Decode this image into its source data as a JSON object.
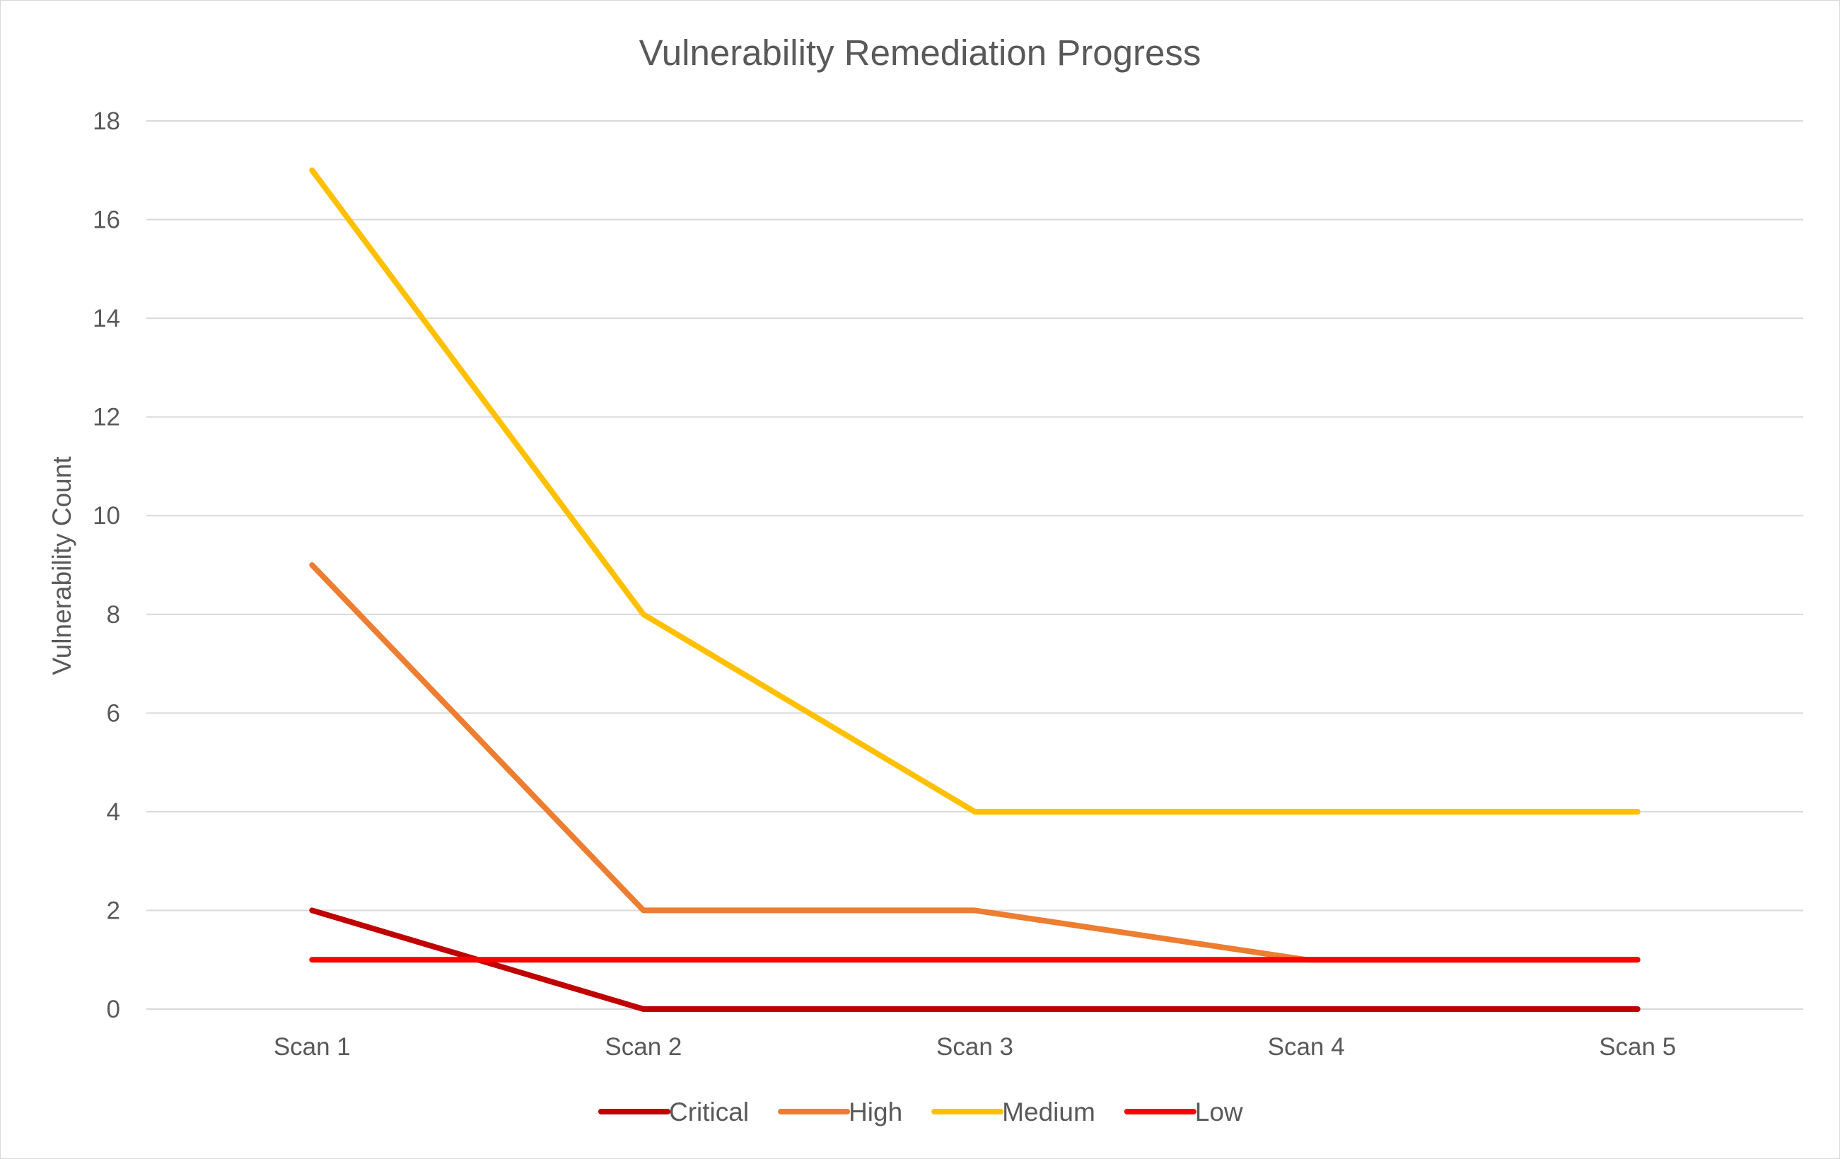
{
  "chart_data": {
    "type": "line",
    "title": "Vulnerability Remediation Progress",
    "xlabel": "",
    "ylabel": "Vulnerability  Count",
    "categories": [
      "Scan 1",
      "Scan 2",
      "Scan 3",
      "Scan 4",
      "Scan 5"
    ],
    "ylim": [
      0,
      18
    ],
    "yticks": [
      0,
      2,
      4,
      6,
      8,
      10,
      12,
      14,
      16,
      18
    ],
    "grid": true,
    "legend_position": "bottom",
    "series": [
      {
        "name": "Critical",
        "color": "#C00000",
        "values": [
          2,
          0,
          0,
          0,
          0
        ]
      },
      {
        "name": "High",
        "color": "#ED7D31",
        "values": [
          9,
          2,
          2,
          1,
          1
        ]
      },
      {
        "name": "Medium",
        "color": "#FFC000",
        "values": [
          17,
          8,
          4,
          4,
          4
        ]
      },
      {
        "name": "Low",
        "color": "#FF0000",
        "values": [
          1,
          1,
          1,
          1,
          1
        ]
      }
    ]
  }
}
